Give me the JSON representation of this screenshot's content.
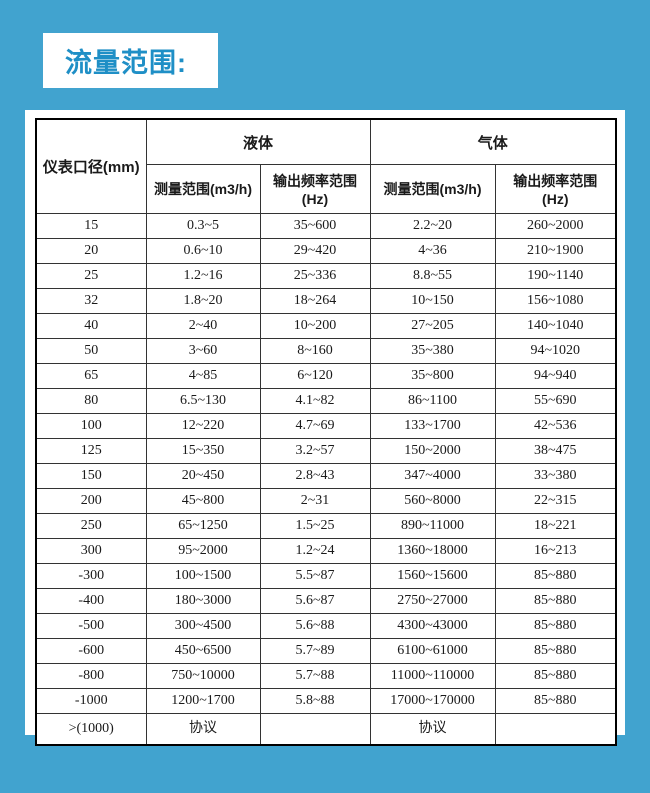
{
  "page": {
    "background_color": "#41A3CF",
    "panel_color": "#ffffff",
    "accent_text_color": "#1F8FC6",
    "table_border_color": "#000000"
  },
  "header": {
    "title": "流量范围:"
  },
  "table": {
    "corner_header": "仪表口径(mm)",
    "group_headers": {
      "liquid": "液体",
      "gas": "气体"
    },
    "column_headers": {
      "measure_range": "测量范围(m3/h)",
      "freq_range_line1": "输出频率范围",
      "freq_range_line2": "(Hz)"
    },
    "rows": [
      [
        "15",
        "0.3~5",
        "35~600",
        "2.2~20",
        "260~2000"
      ],
      [
        "20",
        "0.6~10",
        "29~420",
        "4~36",
        "210~1900"
      ],
      [
        "25",
        "1.2~16",
        "25~336",
        "8.8~55",
        "190~1140"
      ],
      [
        "32",
        "1.8~20",
        "18~264",
        "10~150",
        "156~1080"
      ],
      [
        "40",
        "2~40",
        "10~200",
        "27~205",
        "140~1040"
      ],
      [
        "50",
        "3~60",
        "8~160",
        "35~380",
        "94~1020"
      ],
      [
        "65",
        "4~85",
        "6~120",
        "35~800",
        "94~940"
      ],
      [
        "80",
        "6.5~130",
        "4.1~82",
        "86~1100",
        "55~690"
      ],
      [
        "100",
        "12~220",
        "4.7~69",
        "133~1700",
        "42~536"
      ],
      [
        "125",
        "15~350",
        "3.2~57",
        "150~2000",
        "38~475"
      ],
      [
        "150",
        "20~450",
        "2.8~43",
        "347~4000",
        "33~380"
      ],
      [
        "200",
        "45~800",
        "2~31",
        "560~8000",
        "22~315"
      ],
      [
        "250",
        "65~1250",
        "1.5~25",
        "890~11000",
        "18~221"
      ],
      [
        "300",
        "95~2000",
        "1.2~24",
        "1360~18000",
        "16~213"
      ],
      [
        "-300",
        "100~1500",
        "5.5~87",
        "1560~15600",
        "85~880"
      ],
      [
        "-400",
        "180~3000",
        "5.6~87",
        "2750~27000",
        "85~880"
      ],
      [
        "-500",
        "300~4500",
        "5.6~88",
        "4300~43000",
        "85~880"
      ],
      [
        "-600",
        "450~6500",
        "5.7~89",
        "6100~61000",
        "85~880"
      ],
      [
        "-800",
        "750~10000",
        "5.7~88",
        "11000~110000",
        "85~880"
      ],
      [
        "-1000",
        "1200~1700",
        "5.8~88",
        "17000~170000",
        "85~880"
      ],
      [
        ">(1000)",
        "协议",
        "",
        "协议",
        ""
      ]
    ]
  }
}
